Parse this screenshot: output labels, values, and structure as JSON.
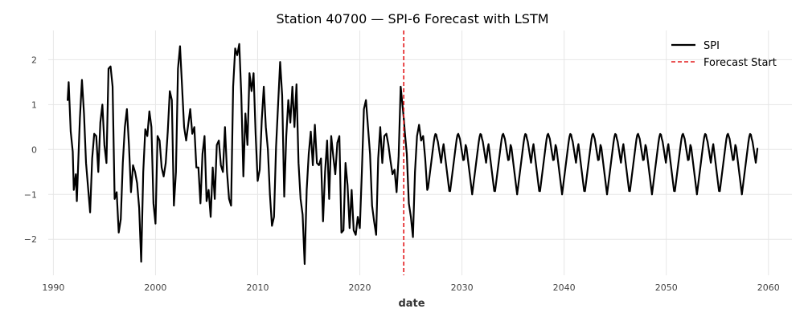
{
  "chart_data": {
    "type": "line",
    "title": "Station 40700 — SPI-6 Forecast with LSTM",
    "xlabel": "date",
    "ylabel": "",
    "xlim": [
      1989.5,
      2062.3
    ],
    "ylim": [
      -2.8,
      2.65
    ],
    "x_ticks": [
      1990,
      2000,
      2010,
      2020,
      2030,
      2040,
      2050,
      2060
    ],
    "y_ticks": [
      -2,
      -1,
      0,
      1,
      2
    ],
    "y_tick_labels": [
      "−2",
      "−1",
      "0",
      "1",
      "2"
    ],
    "grid": true,
    "legend_position": "top-right",
    "forecast_start": 2024.3,
    "colors": {
      "series": "#000000",
      "forecast_start": "#e31a1c",
      "grid": "#e6e6e6"
    },
    "series": [
      {
        "name": "SPI",
        "points": [
          [
            1991.4,
            1.1
          ],
          [
            1991.5,
            1.5
          ],
          [
            1991.7,
            0.4
          ],
          [
            1991.9,
            -0.05
          ],
          [
            1992.0,
            -0.9
          ],
          [
            1992.2,
            -0.55
          ],
          [
            1992.3,
            -1.15
          ],
          [
            1992.5,
            0.1
          ],
          [
            1992.6,
            0.7
          ],
          [
            1992.8,
            1.55
          ],
          [
            1993.0,
            0.8
          ],
          [
            1993.2,
            -0.3
          ],
          [
            1993.4,
            -0.85
          ],
          [
            1993.6,
            -1.4
          ],
          [
            1993.8,
            -0.2
          ],
          [
            1994.0,
            0.35
          ],
          [
            1994.2,
            0.3
          ],
          [
            1994.4,
            -0.5
          ],
          [
            1994.6,
            0.6
          ],
          [
            1994.8,
            1.0
          ],
          [
            1995.0,
            0.1
          ],
          [
            1995.2,
            -0.3
          ],
          [
            1995.4,
            1.8
          ],
          [
            1995.6,
            1.85
          ],
          [
            1995.8,
            1.4
          ],
          [
            1996.0,
            -1.1
          ],
          [
            1996.2,
            -0.95
          ],
          [
            1996.4,
            -1.85
          ],
          [
            1996.6,
            -1.55
          ],
          [
            1996.8,
            -0.3
          ],
          [
            1997.0,
            0.5
          ],
          [
            1997.2,
            0.9
          ],
          [
            1997.4,
            0.1
          ],
          [
            1997.6,
            -0.95
          ],
          [
            1997.8,
            -0.35
          ],
          [
            1998.0,
            -0.5
          ],
          [
            1998.2,
            -0.75
          ],
          [
            1998.4,
            -1.3
          ],
          [
            1998.6,
            -2.5
          ],
          [
            1998.8,
            -0.5
          ],
          [
            1999.0,
            0.45
          ],
          [
            1999.2,
            0.3
          ],
          [
            1999.4,
            0.85
          ],
          [
            1999.6,
            0.5
          ],
          [
            1999.8,
            -1.2
          ],
          [
            2000.0,
            -1.65
          ],
          [
            2000.2,
            0.3
          ],
          [
            2000.4,
            0.2
          ],
          [
            2000.6,
            -0.4
          ],
          [
            2000.8,
            -0.6
          ],
          [
            2001.0,
            -0.3
          ],
          [
            2001.2,
            0.4
          ],
          [
            2001.4,
            1.3
          ],
          [
            2001.6,
            1.1
          ],
          [
            2001.8,
            -1.25
          ],
          [
            2002.0,
            -0.5
          ],
          [
            2002.2,
            1.8
          ],
          [
            2002.4,
            2.3
          ],
          [
            2002.6,
            1.4
          ],
          [
            2002.8,
            0.5
          ],
          [
            2003.0,
            0.2
          ],
          [
            2003.2,
            0.55
          ],
          [
            2003.4,
            0.9
          ],
          [
            2003.6,
            0.35
          ],
          [
            2003.8,
            0.5
          ],
          [
            2004.0,
            -0.4
          ],
          [
            2004.2,
            -0.4
          ],
          [
            2004.4,
            -1.2
          ],
          [
            2004.6,
            -0.1
          ],
          [
            2004.8,
            0.3
          ],
          [
            2005.0,
            -1.15
          ],
          [
            2005.2,
            -0.9
          ],
          [
            2005.4,
            -1.5
          ],
          [
            2005.6,
            -0.4
          ],
          [
            2005.8,
            -1.1
          ],
          [
            2006.0,
            0.1
          ],
          [
            2006.2,
            0.2
          ],
          [
            2006.4,
            -0.35
          ],
          [
            2006.6,
            -0.5
          ],
          [
            2006.8,
            0.5
          ],
          [
            2007.0,
            -0.5
          ],
          [
            2007.2,
            -1.1
          ],
          [
            2007.4,
            -1.25
          ],
          [
            2007.6,
            1.4
          ],
          [
            2007.8,
            2.25
          ],
          [
            2008.0,
            2.1
          ],
          [
            2008.2,
            2.35
          ],
          [
            2008.4,
            1.2
          ],
          [
            2008.6,
            -0.6
          ],
          [
            2008.8,
            0.8
          ],
          [
            2009.0,
            0.1
          ],
          [
            2009.2,
            1.7
          ],
          [
            2009.4,
            1.3
          ],
          [
            2009.6,
            1.7
          ],
          [
            2009.8,
            0.35
          ],
          [
            2010.0,
            -0.7
          ],
          [
            2010.2,
            -0.45
          ],
          [
            2010.4,
            0.65
          ],
          [
            2010.6,
            1.4
          ],
          [
            2010.8,
            0.5
          ],
          [
            2011.0,
            0.0
          ],
          [
            2011.2,
            -1.0
          ],
          [
            2011.4,
            -1.7
          ],
          [
            2011.6,
            -1.5
          ],
          [
            2011.8,
            0.05
          ],
          [
            2012.0,
            1.0
          ],
          [
            2012.2,
            1.95
          ],
          [
            2012.4,
            1.2
          ],
          [
            2012.6,
            -1.05
          ],
          [
            2012.8,
            0.3
          ],
          [
            2013.0,
            1.1
          ],
          [
            2013.2,
            0.6
          ],
          [
            2013.4,
            1.4
          ],
          [
            2013.6,
            0.5
          ],
          [
            2013.8,
            1.45
          ],
          [
            2014.0,
            -0.3
          ],
          [
            2014.2,
            -1.1
          ],
          [
            2014.4,
            -1.45
          ],
          [
            2014.6,
            -2.55
          ],
          [
            2014.8,
            -0.9
          ],
          [
            2015.0,
            -0.1
          ],
          [
            2015.2,
            0.4
          ],
          [
            2015.4,
            -0.35
          ],
          [
            2015.6,
            0.55
          ],
          [
            2015.8,
            -0.3
          ],
          [
            2016.0,
            -0.35
          ],
          [
            2016.2,
            -0.2
          ],
          [
            2016.4,
            -1.6
          ],
          [
            2016.6,
            -0.5
          ],
          [
            2016.8,
            0.2
          ],
          [
            2017.0,
            -1.1
          ],
          [
            2017.2,
            0.3
          ],
          [
            2017.4,
            -0.15
          ],
          [
            2017.6,
            -0.55
          ],
          [
            2017.8,
            0.15
          ],
          [
            2018.0,
            0.3
          ],
          [
            2018.2,
            -1.85
          ],
          [
            2018.4,
            -1.8
          ],
          [
            2018.6,
            -0.3
          ],
          [
            2018.8,
            -0.8
          ],
          [
            2019.0,
            -1.75
          ],
          [
            2019.2,
            -0.9
          ],
          [
            2019.4,
            -1.8
          ],
          [
            2019.6,
            -1.9
          ],
          [
            2019.8,
            -1.5
          ],
          [
            2020.0,
            -1.75
          ],
          [
            2020.2,
            -0.5
          ],
          [
            2020.4,
            0.9
          ],
          [
            2020.6,
            1.1
          ],
          [
            2020.8,
            0.5
          ],
          [
            2021.0,
            -0.1
          ],
          [
            2021.2,
            -1.25
          ],
          [
            2021.4,
            -1.6
          ],
          [
            2021.6,
            -1.9
          ],
          [
            2021.8,
            -0.2
          ],
          [
            2022.0,
            0.5
          ],
          [
            2022.2,
            -0.3
          ],
          [
            2022.4,
            0.3
          ],
          [
            2022.6,
            0.35
          ],
          [
            2022.8,
            0.1
          ],
          [
            2023.0,
            -0.25
          ],
          [
            2023.2,
            -0.55
          ],
          [
            2023.4,
            -0.45
          ],
          [
            2023.6,
            -0.95
          ],
          [
            2023.8,
            -0.15
          ],
          [
            2024.0,
            1.4
          ],
          [
            2024.15,
            1.05
          ],
          [
            2024.3,
            0.7
          ],
          [
            2024.4,
            0.4
          ],
          [
            2024.6,
            -0.1
          ],
          [
            2024.8,
            -1.2
          ],
          [
            2025.0,
            -1.5
          ],
          [
            2025.2,
            -1.95
          ],
          [
            2025.4,
            -0.5
          ],
          [
            2025.6,
            0.3
          ],
          [
            2025.8,
            0.55
          ],
          [
            2026.0,
            0.2
          ],
          [
            2026.2,
            0.3
          ],
          [
            2026.4,
            -0.2
          ],
          [
            2026.6,
            -0.9
          ]
        ]
      }
    ]
  }
}
